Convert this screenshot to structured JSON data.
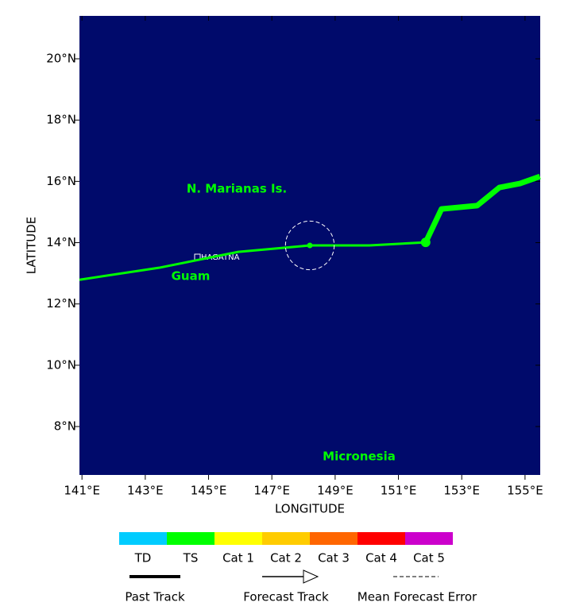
{
  "chart_data": {
    "type": "line",
    "x_label": "LONGITUDE",
    "y_label": "LATITUDE",
    "xlim": [
      140.92,
      155.48
    ],
    "ylim": [
      6.42,
      21.4
    ],
    "xticks": [
      {
        "value": 141,
        "label": "141°E"
      },
      {
        "value": 143,
        "label": "143°E"
      },
      {
        "value": 145,
        "label": "145°E"
      },
      {
        "value": 147,
        "label": "147°E"
      },
      {
        "value": 149,
        "label": "149°E"
      },
      {
        "value": 151,
        "label": "151°E"
      },
      {
        "value": 153,
        "label": "153°E"
      },
      {
        "value": 155,
        "label": "155°E"
      }
    ],
    "yticks": [
      {
        "value": 8,
        "label": "8°N"
      },
      {
        "value": 10,
        "label": "10°N"
      },
      {
        "value": 12,
        "label": "12°N"
      },
      {
        "value": 14,
        "label": "14°N"
      },
      {
        "value": 16,
        "label": "16°N"
      },
      {
        "value": 18,
        "label": "18°N"
      },
      {
        "value": 20,
        "label": "20°N"
      }
    ],
    "background": "#000a6b",
    "series": [
      {
        "color": "#00ff00",
        "x": [
          140.92,
          143.43,
          145.94,
          148.2,
          150.08,
          151.86
        ],
        "y": [
          12.79,
          13.18,
          13.7,
          13.91,
          13.91,
          14.01
        ]
      },
      {
        "color": "#00ff00",
        "x": [
          151.86,
          152.36,
          153.49,
          154.19,
          154.84,
          155.47
        ],
        "y": [
          14.01,
          15.1,
          15.21,
          15.8,
          15.93,
          16.16
        ]
      }
    ],
    "position": [
      148.2,
      13.91
    ],
    "forecast_error_radius": 0.77,
    "annotations": [
      "N. Marianas Is.",
      "Guam",
      "HAGATNA",
      "Micronesia"
    ],
    "intensity_scale": {
      "categories": [
        "TD",
        "TS",
        "Cat 1",
        "Cat 2",
        "Cat 3",
        "Cat 4",
        "Cat 5"
      ],
      "colors": [
        "#00ccff",
        "#00ff00",
        "#ffff00",
        "#ffcc00",
        "#ff6600",
        "#ff0000",
        "#cc00cc"
      ]
    },
    "track_legend": [
      "Past Track",
      "Forecast Track",
      "Mean Forecast Error"
    ]
  }
}
